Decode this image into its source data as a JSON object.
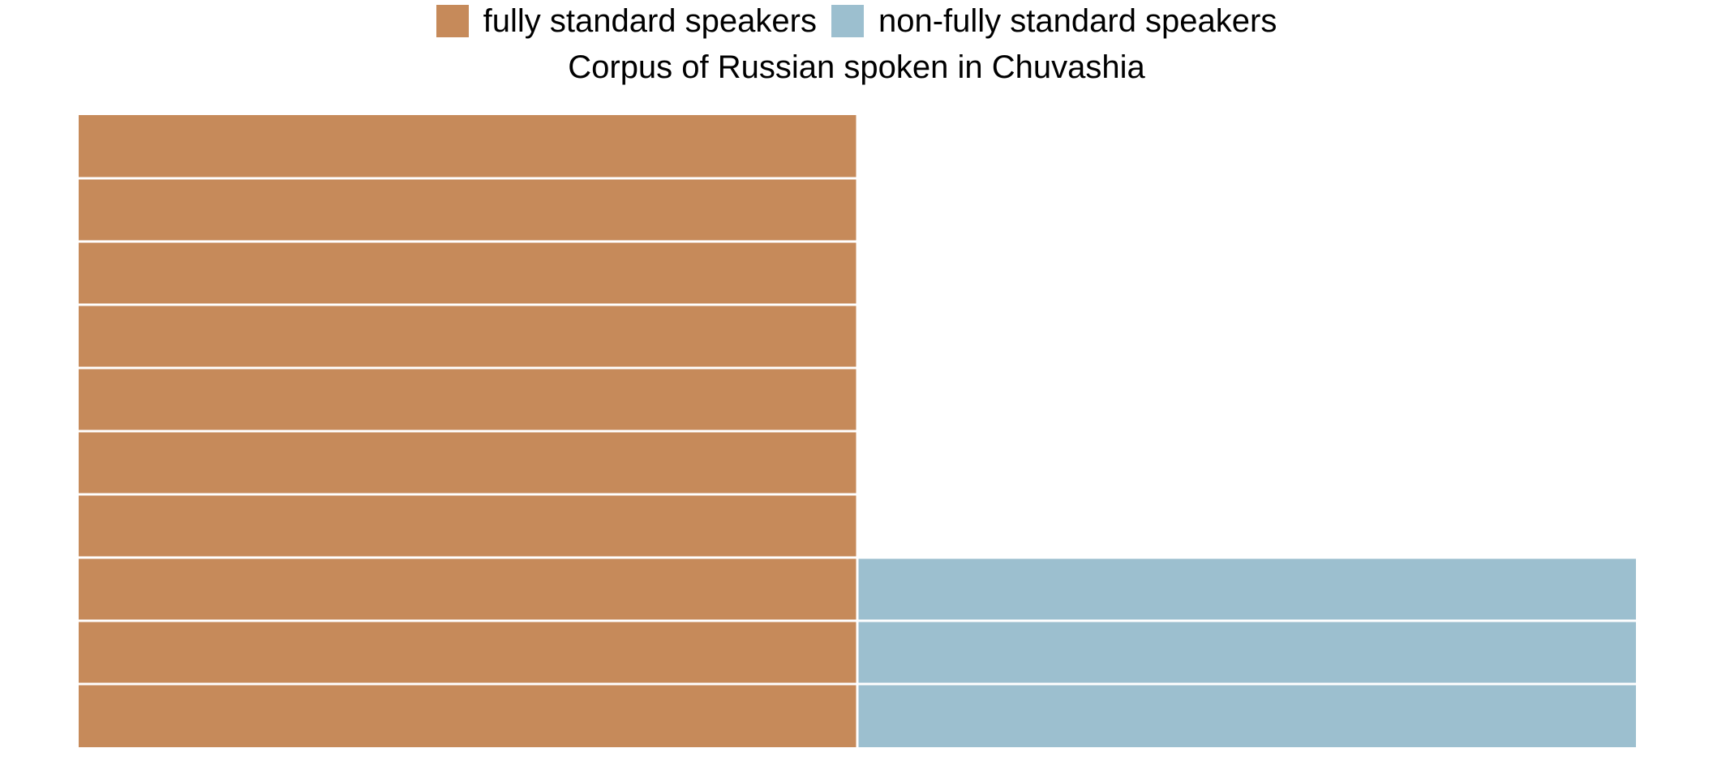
{
  "chart_data": {
    "type": "bar",
    "title": "Corpus of Russian spoken in Chuvashia",
    "legend_position": "top",
    "stacked_units": true,
    "grid": false,
    "categories": [
      "fully standard speakers",
      "non-fully standard speakers"
    ],
    "values": [
      10,
      3
    ],
    "ylim": [
      0,
      10
    ],
    "colors": [
      "#C68A5A",
      "#9CBFCF"
    ]
  }
}
